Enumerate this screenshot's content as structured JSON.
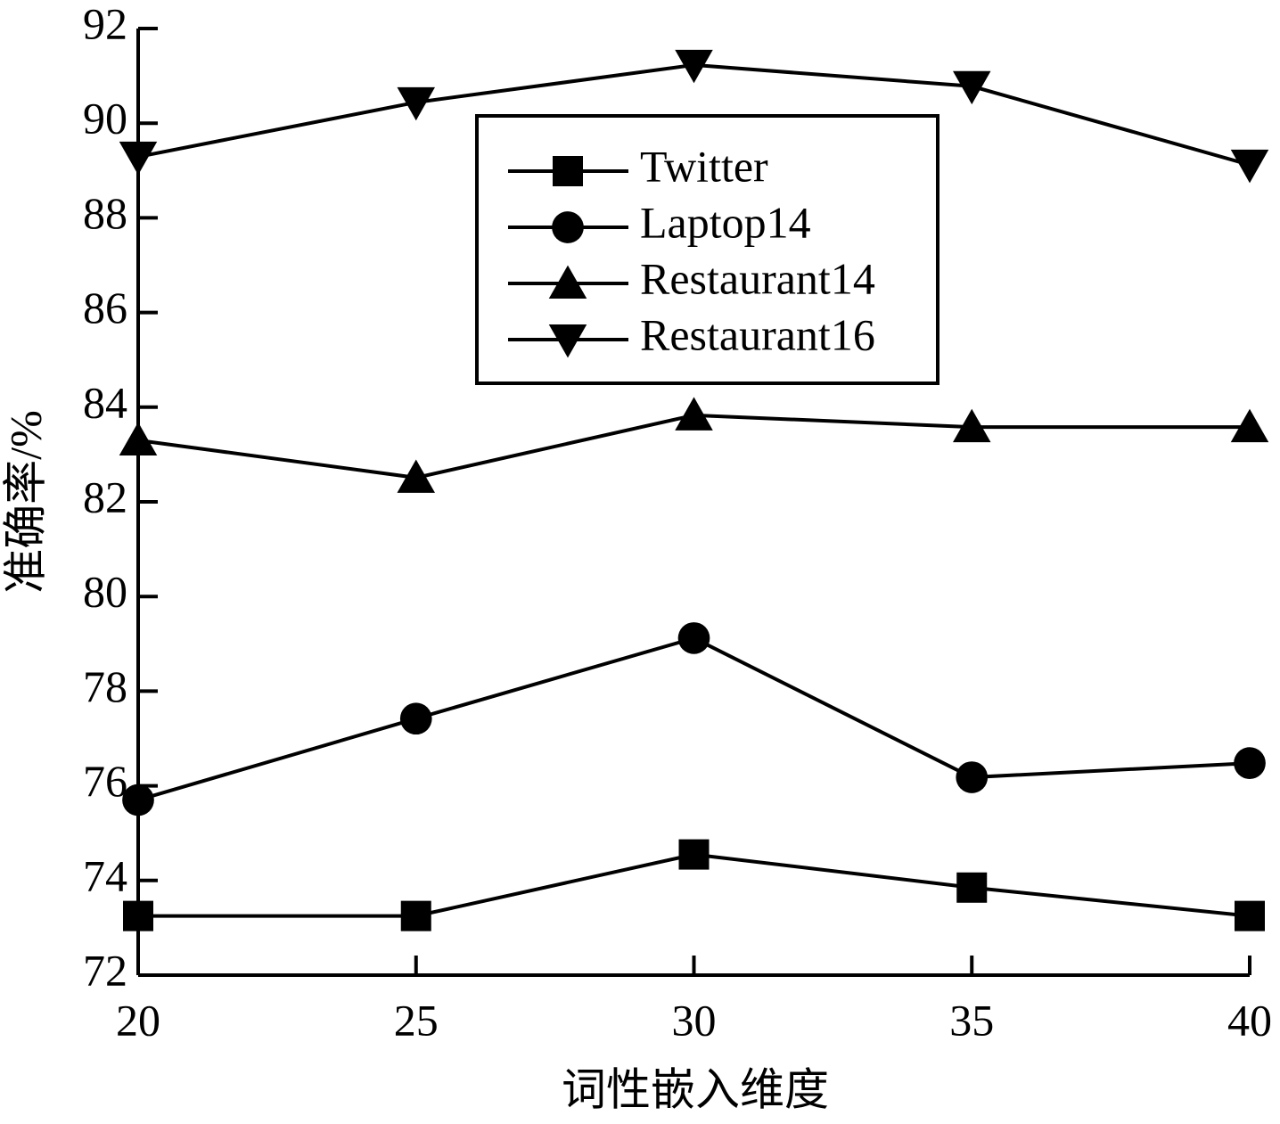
{
  "chart_data": {
    "type": "line",
    "xlabel": "词性嵌入维度",
    "ylabel": "准确率/%",
    "x": [
      20,
      25,
      30,
      35,
      40
    ],
    "series": [
      {
        "name": "Twitter",
        "color": "#000000",
        "marker": "square",
        "values": [
          73.25,
          73.25,
          74.55,
          73.85,
          73.25
        ]
      },
      {
        "name": "Laptop14",
        "color": "#000000",
        "marker": "circle",
        "values": [
          75.7,
          77.42,
          79.12,
          76.18,
          76.48
        ]
      },
      {
        "name": "Restaurant14",
        "color": "#000000",
        "marker": "triangle-up",
        "values": [
          83.3,
          82.51,
          83.83,
          83.58,
          83.58
        ]
      },
      {
        "name": "Restaurant16",
        "color": "#000000",
        "marker": "triangle-down",
        "values": [
          89.29,
          90.44,
          91.23,
          90.78,
          89.12
        ]
      }
    ],
    "xlim": [
      20,
      40
    ],
    "xticks": [
      20,
      25,
      30,
      35,
      40
    ],
    "ylim": [
      72,
      92
    ],
    "yticks": [
      72,
      74,
      76,
      78,
      80,
      82,
      84,
      86,
      88,
      90,
      92
    ],
    "legend": "upper center"
  }
}
